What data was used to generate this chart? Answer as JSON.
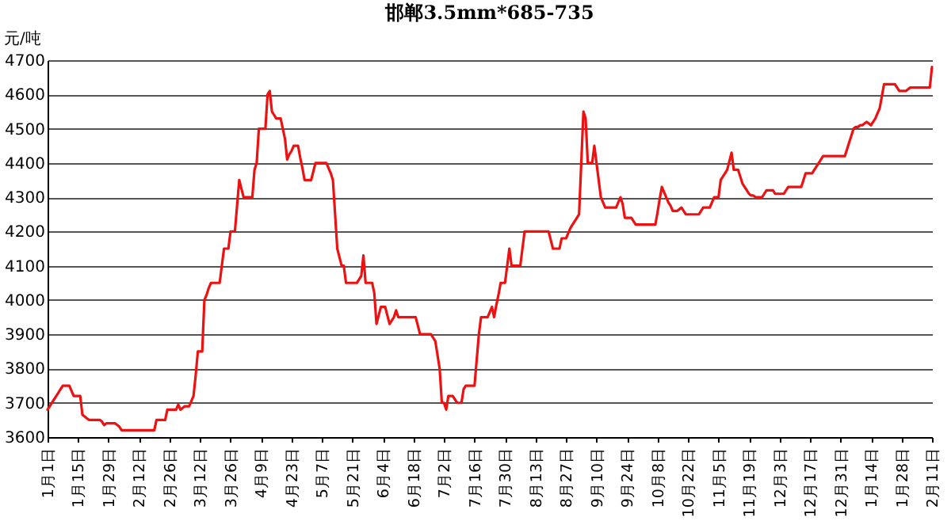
{
  "chart_data": {
    "type": "line",
    "title": "邯郸3.5mm*685-735",
    "ylabel": "元/吨",
    "categories": [
      "1月1日",
      null,
      null,
      null,
      null,
      null,
      null,
      null,
      null,
      null,
      null,
      null,
      null,
      null,
      "1月15日",
      null,
      null,
      null,
      null,
      null,
      null,
      null,
      null,
      null,
      null,
      null,
      null,
      null,
      "1月29日",
      null,
      null,
      null,
      null,
      null,
      null,
      null,
      null,
      null,
      null,
      null,
      null,
      null,
      "2月12日",
      null,
      null,
      null,
      null,
      null,
      null,
      null,
      null,
      null,
      null,
      null,
      null,
      null,
      "2月26日",
      null,
      null,
      null,
      null,
      null,
      null,
      null,
      null,
      null,
      null,
      null,
      null,
      null,
      "3月12日",
      null,
      null,
      null,
      null,
      null,
      null,
      null,
      null,
      null,
      null,
      null,
      null,
      null,
      "3月26日",
      null,
      null,
      null,
      null,
      null,
      null,
      null,
      null,
      null,
      null,
      null,
      null,
      null,
      "4月9日",
      null,
      null,
      null,
      null,
      null,
      null,
      null,
      null,
      null,
      null,
      null,
      null,
      null,
      "4月23日",
      null,
      null,
      null,
      null,
      null,
      null,
      null,
      null,
      null,
      null,
      null,
      null,
      null,
      "5月7日",
      null,
      null,
      null,
      null,
      null,
      null,
      null,
      null,
      null,
      null,
      null,
      null,
      null,
      "5月21日",
      null,
      null,
      null,
      null,
      null,
      null,
      null,
      null,
      null,
      null,
      null,
      null,
      null,
      "6月4日",
      null,
      null,
      null,
      null,
      null,
      null,
      null,
      null,
      null,
      null,
      null,
      null,
      null,
      "6月18日",
      null,
      null,
      null,
      null,
      null,
      null,
      null,
      null,
      null,
      null,
      null,
      null,
      null,
      "7月2日",
      null,
      null,
      null,
      null,
      null,
      null,
      null,
      null,
      null,
      null,
      null,
      null,
      null,
      "7月16日",
      null,
      null,
      null,
      null,
      null,
      null,
      null,
      null,
      null,
      null,
      null,
      null,
      null,
      "7月30日",
      null,
      null,
      null,
      null,
      null,
      null,
      null,
      null,
      null,
      null,
      null,
      null,
      null,
      "8月13日",
      null,
      null,
      null,
      null,
      null,
      null,
      null,
      null,
      null,
      null,
      null,
      null,
      null,
      "8月27日",
      null,
      null,
      null,
      null,
      null,
      null,
      null,
      null,
      null,
      null,
      null,
      null,
      null,
      "9月10日",
      null,
      null,
      null,
      null,
      null,
      null,
      null,
      null,
      null,
      null,
      null,
      null,
      null,
      "9月24日",
      null,
      null,
      null,
      null,
      null,
      null,
      null,
      null,
      null,
      null,
      null,
      null,
      null,
      "10月8日",
      null,
      null,
      null,
      null,
      null,
      null,
      null,
      null,
      null,
      null,
      null,
      null,
      null,
      "10月22日",
      null,
      null,
      null,
      null,
      null,
      null,
      null,
      null,
      null,
      null,
      null,
      null,
      null,
      "11月5日",
      null,
      null,
      null,
      null,
      null,
      null,
      null,
      null,
      null,
      null,
      null,
      null,
      null,
      "11月19日",
      null,
      null,
      null,
      null,
      null,
      null,
      null,
      null,
      null,
      null,
      null,
      null,
      null,
      "12月3日",
      null,
      null,
      null,
      null,
      null,
      null,
      null,
      null,
      null,
      null,
      null,
      null,
      null,
      "12月17日",
      null,
      null,
      null,
      null,
      null,
      null,
      null,
      null,
      null,
      null,
      null,
      null,
      null,
      "12月31日",
      null,
      null,
      null,
      null,
      null,
      null,
      null,
      null,
      null,
      null,
      null,
      null,
      null,
      "1月14日",
      null,
      null,
      null,
      null,
      null,
      null,
      null,
      null,
      null,
      null,
      null,
      null,
      null,
      "1月28日",
      null,
      null,
      null,
      null,
      null,
      null,
      null,
      null,
      null,
      null,
      null,
      null,
      null,
      "2月11日"
    ],
    "series": [
      {
        "color": "#ee1111",
        "values": [
          3680,
          3690,
          3700,
          3710,
          3720,
          3730,
          3740,
          3750,
          3750,
          3750,
          3750,
          3735,
          3720,
          3720,
          3720,
          3720,
          3665,
          3660,
          3655,
          3650,
          3650,
          3650,
          3650,
          3650,
          3650,
          3645,
          3635,
          3640,
          3640,
          3640,
          3640,
          3640,
          3635,
          3630,
          3620,
          3620,
          3620,
          3620,
          3620,
          3620,
          3620,
          3620,
          3620,
          3620,
          3620,
          3620,
          3620,
          3620,
          3620,
          3620,
          3650,
          3650,
          3650,
          3650,
          3650,
          3680,
          3680,
          3680,
          3680,
          3680,
          3695,
          3680,
          3685,
          3690,
          3690,
          3690,
          3705,
          3720,
          3780,
          3850,
          3850,
          3850,
          4000,
          4015,
          4035,
          4050,
          4050,
          4050,
          4050,
          4050,
          4100,
          4150,
          4150,
          4150,
          4200,
          4200,
          4200,
          4275,
          4350,
          4325,
          4300,
          4300,
          4300,
          4300,
          4300,
          4380,
          4400,
          4500,
          4500,
          4500,
          4500,
          4600,
          4610,
          4550,
          4540,
          4530,
          4530,
          4530,
          4500,
          4470,
          4410,
          4425,
          4435,
          4450,
          4450,
          4450,
          4415,
          4385,
          4350,
          4350,
          4350,
          4350,
          4375,
          4400,
          4400,
          4400,
          4400,
          4400,
          4400,
          4385,
          4370,
          4350,
          4250,
          4150,
          4125,
          4100,
          4100,
          4050,
          4050,
          4050,
          4050,
          4050,
          4050,
          4060,
          4070,
          4130,
          4050,
          4050,
          4050,
          4050,
          4020,
          3930,
          3955,
          3980,
          3980,
          3980,
          3955,
          3930,
          3940,
          3950,
          3970,
          3950,
          3950,
          3950,
          3950,
          3950,
          3950,
          3950,
          3950,
          3950,
          3925,
          3900,
          3900,
          3900,
          3900,
          3900,
          3900,
          3890,
          3880,
          3840,
          3800,
          3700,
          3700,
          3680,
          3720,
          3720,
          3720,
          3710,
          3700,
          3700,
          3700,
          3740,
          3750,
          3750,
          3750,
          3750,
          3750,
          3825,
          3900,
          3950,
          3950,
          3950,
          3950,
          3965,
          3980,
          3950,
          3985,
          4015,
          4050,
          4050,
          4050,
          4100,
          4150,
          4100,
          4100,
          4100,
          4100,
          4100,
          4150,
          4200,
          4200,
          4200,
          4200,
          4200,
          4200,
          4200,
          4200,
          4200,
          4200,
          4200,
          4200,
          4175,
          4150,
          4150,
          4150,
          4150,
          4180,
          4180,
          4180,
          4195,
          4210,
          4220,
          4230,
          4240,
          4250,
          4400,
          4550,
          4530,
          4400,
          4400,
          4400,
          4450,
          4400,
          4350,
          4300,
          4285,
          4270,
          4270,
          4270,
          4270,
          4270,
          4270,
          4285,
          4300,
          4280,
          4240,
          4240,
          4240,
          4240,
          4230,
          4220,
          4220,
          4220,
          4220,
          4220,
          4220,
          4220,
          4220,
          4220,
          4220,
          4255,
          4295,
          4330,
          4315,
          4300,
          4285,
          4275,
          4260,
          4260,
          4260,
          4265,
          4270,
          4260,
          4250,
          4250,
          4250,
          4250,
          4250,
          4250,
          4250,
          4260,
          4270,
          4270,
          4270,
          4270,
          4285,
          4300,
          4300,
          4300,
          4350,
          4360,
          4370,
          4380,
          4405,
          4430,
          4380,
          4380,
          4380,
          4360,
          4340,
          4330,
          4320,
          4310,
          4305,
          4305,
          4300,
          4300,
          4300,
          4300,
          4310,
          4320,
          4320,
          4320,
          4320,
          4310,
          4310,
          4310,
          4310,
          4310,
          4320,
          4330,
          4330,
          4330,
          4330,
          4330,
          4330,
          4330,
          4350,
          4370,
          4370,
          4370,
          4370,
          4380,
          4390,
          4400,
          4410,
          4420,
          4420,
          4420,
          4420,
          4420,
          4420,
          4420,
          4420,
          4420,
          4420,
          4420,
          4440,
          4460,
          4480,
          4500,
          4505,
          4505,
          4510,
          4510,
          4515,
          4520,
          4515,
          4510,
          4520,
          4530,
          4545,
          4560,
          4595,
          4630,
          4630,
          4630,
          4630,
          4630,
          4630,
          4620,
          4610,
          4610,
          4610,
          4610,
          4615,
          4620,
          4620,
          4620,
          4620,
          4620,
          4620,
          4620,
          4620,
          4620,
          4620,
          4680
        ]
      }
    ],
    "ylim": [
      3600,
      4700
    ],
    "yticks": [
      3600,
      3700,
      3800,
      3900,
      4000,
      4100,
      4200,
      4300,
      4400,
      4500,
      4600,
      4700
    ],
    "grid": "y",
    "marker": "none",
    "line_style": "solid"
  }
}
